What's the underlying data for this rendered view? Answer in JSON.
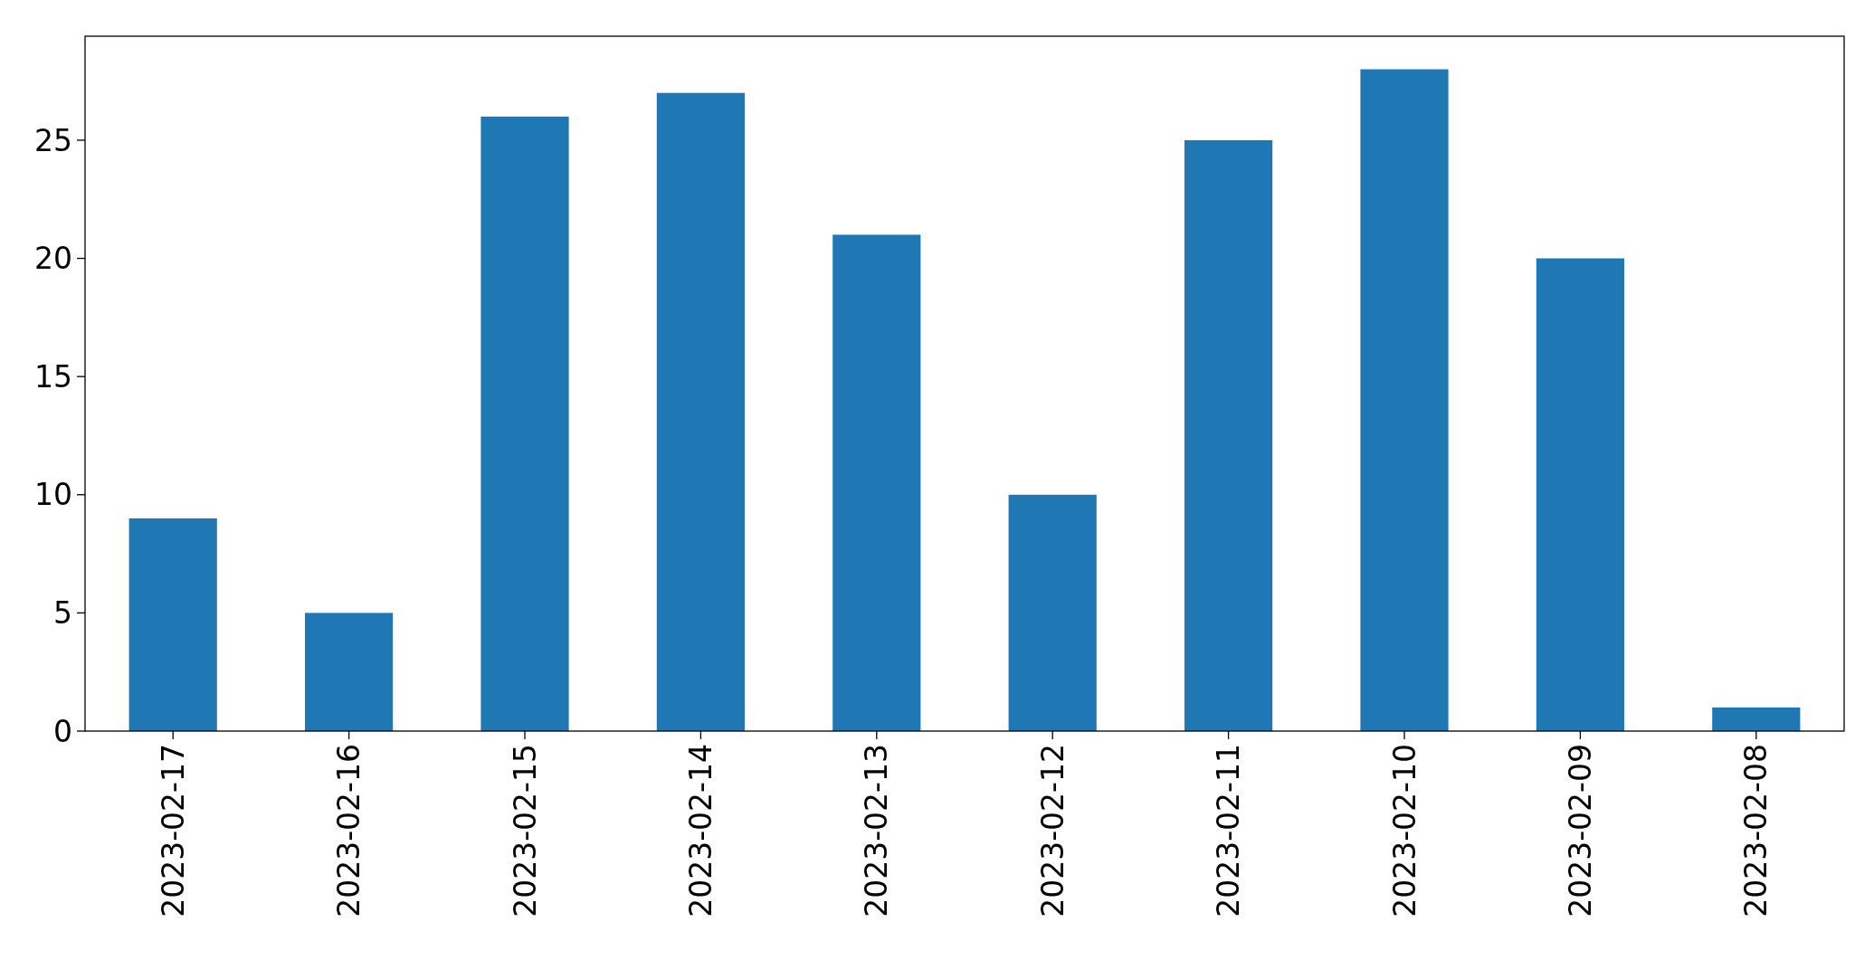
{
  "chart_data": {
    "type": "bar",
    "categories": [
      "2023-02-17",
      "2023-02-16",
      "2023-02-15",
      "2023-02-14",
      "2023-02-13",
      "2023-02-12",
      "2023-02-11",
      "2023-02-10",
      "2023-02-09",
      "2023-02-08"
    ],
    "values": [
      9,
      5,
      26,
      27,
      21,
      10,
      25,
      28,
      20,
      1
    ],
    "color": "#1f77b4",
    "ylim": [
      0,
      29.4
    ],
    "yticks": [
      0,
      5,
      10,
      15,
      20,
      25
    ],
    "grid": false
  }
}
